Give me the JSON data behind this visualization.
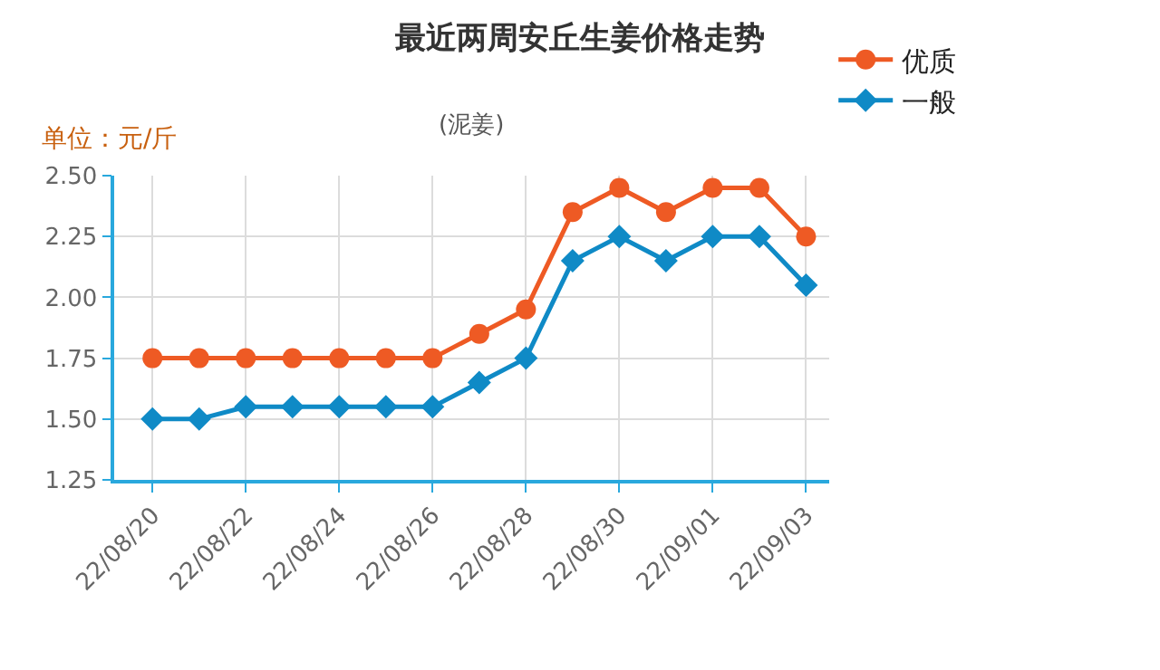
{
  "chart_data": {
    "type": "line",
    "title": "最近两周安丘生姜价格走势",
    "subtitle": "(泥姜)",
    "ylabel": "单位：元/斤",
    "categories": [
      "22/08/20",
      null,
      "22/08/22",
      null,
      "22/08/24",
      null,
      "22/08/26",
      null,
      "22/08/28",
      null,
      "22/08/30",
      null,
      "22/09/01",
      null,
      "22/09/03"
    ],
    "series": [
      {
        "name": "优质",
        "color": "#ee5a24",
        "marker": "circle",
        "values": [
          1.75,
          1.75,
          1.75,
          1.75,
          1.75,
          1.75,
          1.75,
          1.85,
          1.95,
          2.35,
          2.45,
          2.35,
          2.45,
          2.45,
          2.25
        ]
      },
      {
        "name": "一般",
        "color": "#0f8ac6",
        "marker": "diamond",
        "values": [
          1.5,
          1.5,
          1.55,
          1.55,
          1.55,
          1.55,
          1.55,
          1.65,
          1.75,
          2.15,
          2.25,
          2.15,
          2.25,
          2.25,
          2.05
        ]
      }
    ],
    "ylim": [
      1.25,
      2.5
    ],
    "yticks": [
      {
        "value": 1.25,
        "label": "1.25"
      },
      {
        "value": 1.5,
        "label": "1.50"
      },
      {
        "value": 1.75,
        "label": "1.75"
      },
      {
        "value": 2,
        "label": "2.00"
      },
      {
        "value": 2.25,
        "label": "2.25"
      },
      {
        "value": 2.5,
        "label": "2.50"
      }
    ],
    "grid": true,
    "legend": "top right",
    "line_style": "solid"
  }
}
